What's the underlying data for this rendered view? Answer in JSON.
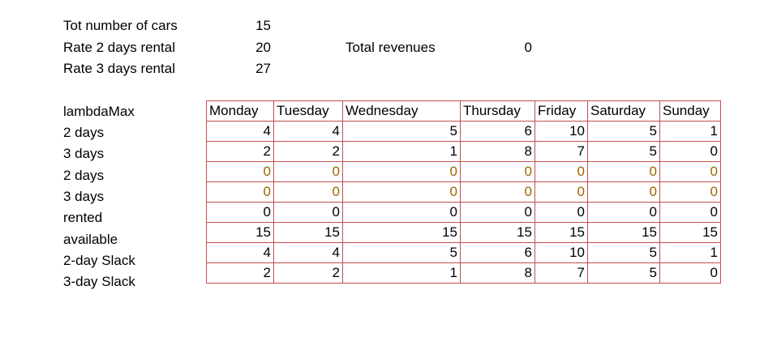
{
  "params": [
    {
      "label": "Tot number of cars",
      "value": "15"
    },
    {
      "label": "Rate 2 days rental",
      "value": "20"
    },
    {
      "label": "Rate 3 days rental",
      "value": "27"
    }
  ],
  "total_revenues": {
    "label": "Total revenues",
    "value": "0"
  },
  "header_label": "lambdaMax",
  "days": [
    "Monday",
    "Tuesday",
    "Wednesday",
    "Thursday",
    "Friday",
    "Saturday",
    "Sunday"
  ],
  "rows": [
    {
      "label": "2 days",
      "kind": "data",
      "values": [
        "4",
        "4",
        "5",
        "6",
        "10",
        "5",
        "1"
      ]
    },
    {
      "label": "3 days",
      "kind": "data",
      "values": [
        "2",
        "2",
        "1",
        "8",
        "7",
        "5",
        "0"
      ]
    },
    {
      "label": "2 days",
      "kind": "decision",
      "values": [
        "0",
        "0",
        "0",
        "0",
        "0",
        "0",
        "0"
      ]
    },
    {
      "label": "3 days",
      "kind": "decision",
      "values": [
        "0",
        "0",
        "0",
        "0",
        "0",
        "0",
        "0"
      ]
    },
    {
      "label": "rented",
      "kind": "data",
      "values": [
        "0",
        "0",
        "0",
        "0",
        "0",
        "0",
        "0"
      ]
    },
    {
      "label": "available",
      "kind": "data",
      "values": [
        "15",
        "15",
        "15",
        "15",
        "15",
        "15",
        "15"
      ]
    },
    {
      "label": "2-day Slack",
      "kind": "data",
      "values": [
        "4",
        "4",
        "5",
        "6",
        "10",
        "5",
        "1"
      ]
    },
    {
      "label": "3-day Slack",
      "kind": "data",
      "values": [
        "2",
        "2",
        "1",
        "8",
        "7",
        "5",
        "0"
      ]
    }
  ],
  "colors": {
    "grid_border": "#c0504d",
    "decision_text": "#9c6500",
    "text": "#000000"
  }
}
